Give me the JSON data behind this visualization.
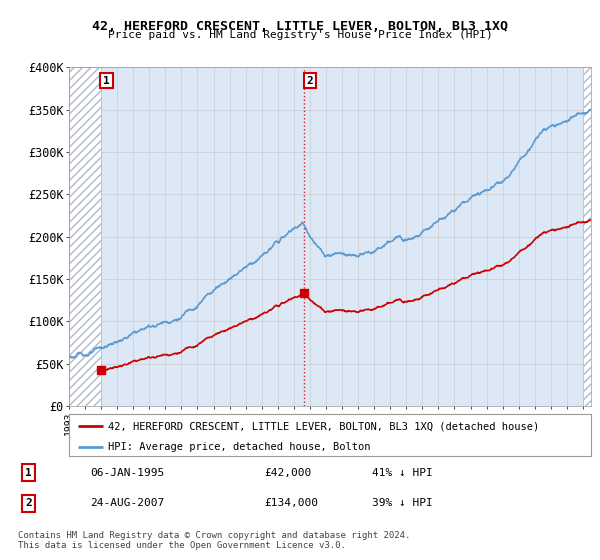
{
  "title": "42, HEREFORD CRESCENT, LITTLE LEVER, BOLTON, BL3 1XQ",
  "subtitle": "Price paid vs. HM Land Registry's House Price Index (HPI)",
  "ylim": [
    0,
    400000
  ],
  "yticks": [
    0,
    50000,
    100000,
    150000,
    200000,
    250000,
    300000,
    350000,
    400000
  ],
  "ytick_labels": [
    "£0",
    "£50K",
    "£100K",
    "£150K",
    "£200K",
    "£250K",
    "£300K",
    "£350K",
    "£400K"
  ],
  "xlim_start": 1993.0,
  "xlim_end": 2025.5,
  "hpi_color": "#5b9bd5",
  "price_color": "#cc0000",
  "marker1_date": 1995.02,
  "marker1_price": 42000,
  "marker2_date": 2007.65,
  "marker2_price": 134000,
  "annotation1_label": "1",
  "annotation2_label": "2",
  "legend1_text": "42, HEREFORD CRESCENT, LITTLE LEVER, BOLTON, BL3 1XQ (detached house)",
  "legend2_text": "HPI: Average price, detached house, Bolton",
  "table_row1": [
    "1",
    "06-JAN-1995",
    "£42,000",
    "41% ↓ HPI"
  ],
  "table_row2": [
    "2",
    "24-AUG-2007",
    "£134,000",
    "39% ↓ HPI"
  ],
  "footnote": "Contains HM Land Registry data © Crown copyright and database right 2024.\nThis data is licensed under the Open Government Licence v3.0.",
  "hatch_color": "#b0b8c8",
  "bg_color": "#dce8f5",
  "vline_color": "#cc0000",
  "hatch_region_end": 2025.5
}
